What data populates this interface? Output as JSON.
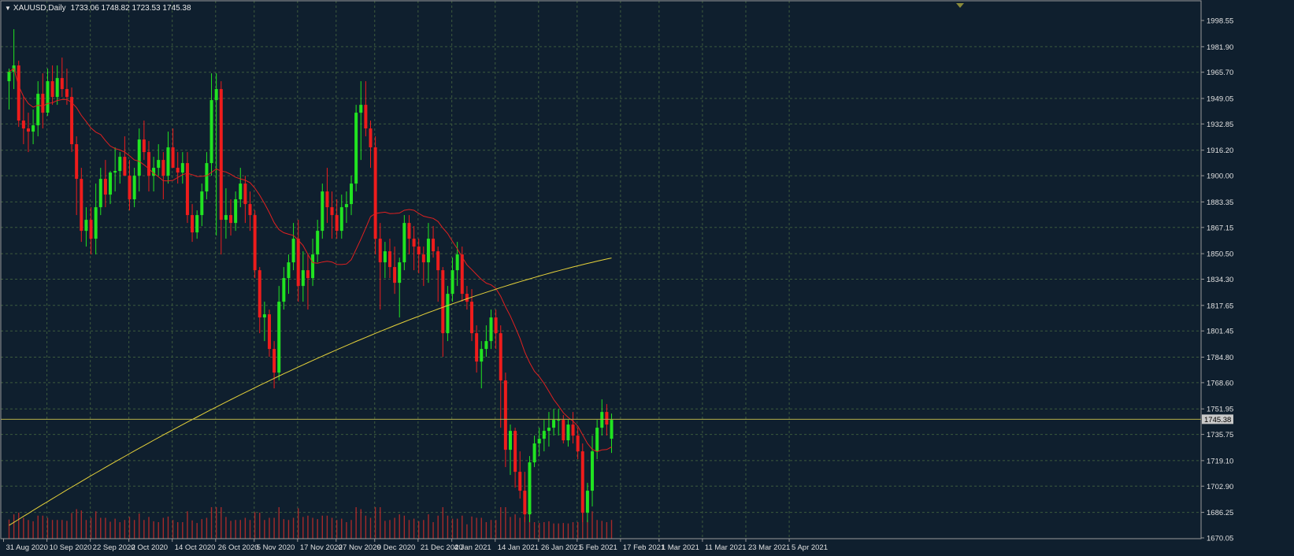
{
  "header": {
    "symbol": "XAUUSD,Daily",
    "ohlc": "1733.06 1748.82 1723.53 1745.38"
  },
  "current_price_label": "1745.38",
  "colors": {
    "background": "#0f1f2e",
    "grid": "#3d5a3d",
    "frame": "#9a9a9a",
    "text": "#e0e0e0",
    "bull": "#21e421",
    "bear": "#ee1c1c",
    "ma_fast": "#e02020",
    "ma_slow": "#e6d23a",
    "volume": "#a52a2a",
    "price_line": "#b8b04a",
    "price_label_bg": "#c9c9c9"
  },
  "chart_data": {
    "type": "candlestick",
    "title": "",
    "ylim": [
      1670.05,
      2004
    ],
    "y_ticks": [
      "1998.55",
      "1981.90",
      "1965.70",
      "1949.05",
      "1932.85",
      "1916.20",
      "1900.00",
      "1883.35",
      "1867.15",
      "1850.50",
      "1834.30",
      "1817.65",
      "1801.45",
      "1784.80",
      "1768.60",
      "1751.95",
      "1735.75",
      "1719.10",
      "1702.90",
      "1686.25",
      "1670.05"
    ],
    "x_tick_labels": [
      "31 Aug 2020",
      "10 Sep 2020",
      "22 Sep 2020",
      "2 Oct 2020",
      "14 Oct 2020",
      "26 Oct 2020",
      "5 Nov 2020",
      "17 Nov 2020",
      "27 Nov 2020",
      "9 Dec 2020",
      "21 Dec 2020",
      "4 Jan 2021",
      "14 Jan 2021",
      "26 Jan 2021",
      "5 Feb 2021",
      "17 Feb 2021",
      "1 Mar 2021",
      "11 Mar 2021",
      "23 Mar 2021",
      "5 Apr 2021"
    ],
    "x_tick_bar_index": [
      0,
      9,
      18,
      26,
      35,
      44,
      52,
      61,
      69,
      77,
      86,
      93,
      102,
      111,
      119,
      128,
      136,
      145,
      154,
      163
    ],
    "ohlc": [
      [
        1960,
        1968,
        1942,
        1966
      ],
      [
        1966,
        1993,
        1955,
        1970
      ],
      [
        1970,
        1973,
        1931,
        1935
      ],
      [
        1935,
        1950,
        1920,
        1930
      ],
      [
        1930,
        1940,
        1915,
        1928
      ],
      [
        1928,
        1942,
        1920,
        1932
      ],
      [
        1932,
        1960,
        1925,
        1952
      ],
      [
        1952,
        1965,
        1930,
        1940
      ],
      [
        1940,
        1968,
        1938,
        1960
      ],
      [
        1960,
        1970,
        1945,
        1950
      ],
      [
        1950,
        1970,
        1945,
        1962
      ],
      [
        1962,
        1975,
        1950,
        1955
      ],
      [
        1955,
        1968,
        1945,
        1950
      ],
      [
        1950,
        1956,
        1915,
        1920
      ],
      [
        1920,
        1925,
        1875,
        1898
      ],
      [
        1898,
        1905,
        1858,
        1865
      ],
      [
        1865,
        1880,
        1855,
        1872
      ],
      [
        1872,
        1880,
        1850,
        1860
      ],
      [
        1860,
        1895,
        1850,
        1880
      ],
      [
        1880,
        1905,
        1875,
        1898
      ],
      [
        1898,
        1910,
        1880,
        1888
      ],
      [
        1888,
        1903,
        1882,
        1902
      ],
      [
        1902,
        1918,
        1890,
        1903
      ],
      [
        1903,
        1915,
        1895,
        1912
      ],
      [
        1912,
        1925,
        1900,
        1900
      ],
      [
        1900,
        1910,
        1878,
        1885
      ],
      [
        1885,
        1905,
        1880,
        1900
      ],
      [
        1900,
        1930,
        1890,
        1923
      ],
      [
        1923,
        1935,
        1910,
        1915
      ],
      [
        1915,
        1922,
        1890,
        1900
      ],
      [
        1900,
        1912,
        1890,
        1905
      ],
      [
        1905,
        1920,
        1900,
        1910
      ],
      [
        1910,
        1915,
        1885,
        1900
      ],
      [
        1900,
        1928,
        1895,
        1918
      ],
      [
        1918,
        1930,
        1905,
        1905
      ],
      [
        1905,
        1915,
        1895,
        1902
      ],
      [
        1902,
        1915,
        1895,
        1908
      ],
      [
        1908,
        1915,
        1870,
        1875
      ],
      [
        1875,
        1882,
        1858,
        1864
      ],
      [
        1864,
        1878,
        1860,
        1875
      ],
      [
        1875,
        1895,
        1868,
        1890
      ],
      [
        1890,
        1915,
        1885,
        1908
      ],
      [
        1908,
        1965,
        1900,
        1948
      ],
      [
        1948,
        1965,
        1862,
        1955
      ],
      [
        1955,
        1960,
        1850,
        1872
      ],
      [
        1872,
        1892,
        1860,
        1875
      ],
      [
        1875,
        1885,
        1862,
        1870
      ],
      [
        1870,
        1890,
        1865,
        1885
      ],
      [
        1885,
        1905,
        1880,
        1895
      ],
      [
        1895,
        1900,
        1870,
        1882
      ],
      [
        1882,
        1890,
        1865,
        1875
      ],
      [
        1875,
        1878,
        1835,
        1840
      ],
      [
        1840,
        1842,
        1800,
        1810
      ],
      [
        1810,
        1820,
        1795,
        1812
      ],
      [
        1812,
        1815,
        1785,
        1790
      ],
      [
        1790,
        1795,
        1765,
        1775
      ],
      [
        1775,
        1830,
        1770,
        1820
      ],
      [
        1820,
        1842,
        1815,
        1835
      ],
      [
        1835,
        1850,
        1825,
        1845
      ],
      [
        1845,
        1870,
        1840,
        1860
      ],
      [
        1860,
        1872,
        1820,
        1830
      ],
      [
        1830,
        1852,
        1820,
        1840
      ],
      [
        1840,
        1850,
        1815,
        1835
      ],
      [
        1835,
        1860,
        1830,
        1850
      ],
      [
        1850,
        1872,
        1845,
        1865
      ],
      [
        1865,
        1895,
        1860,
        1890
      ],
      [
        1890,
        1905,
        1870,
        1880
      ],
      [
        1880,
        1890,
        1860,
        1875
      ],
      [
        1875,
        1885,
        1860,
        1865
      ],
      [
        1865,
        1888,
        1860,
        1880
      ],
      [
        1880,
        1890,
        1870,
        1882
      ],
      [
        1882,
        1900,
        1875,
        1895
      ],
      [
        1895,
        1945,
        1890,
        1940
      ],
      [
        1940,
        1960,
        1910,
        1945
      ],
      [
        1945,
        1960,
        1925,
        1930
      ],
      [
        1930,
        1935,
        1905,
        1918
      ],
      [
        1918,
        1925,
        1850,
        1860
      ],
      [
        1860,
        1870,
        1815,
        1845
      ],
      [
        1845,
        1858,
        1835,
        1852
      ],
      [
        1852,
        1860,
        1835,
        1842
      ],
      [
        1842,
        1855,
        1825,
        1832
      ],
      [
        1832,
        1848,
        1810,
        1845
      ],
      [
        1845,
        1875,
        1840,
        1870
      ],
      [
        1870,
        1875,
        1850,
        1860
      ],
      [
        1860,
        1868,
        1840,
        1855
      ],
      [
        1855,
        1860,
        1838,
        1850
      ],
      [
        1850,
        1855,
        1830,
        1845
      ],
      [
        1845,
        1870,
        1832,
        1860
      ],
      [
        1860,
        1868,
        1848,
        1852
      ],
      [
        1852,
        1855,
        1820,
        1840
      ],
      [
        1840,
        1842,
        1785,
        1800
      ],
      [
        1800,
        1830,
        1795,
        1825
      ],
      [
        1825,
        1848,
        1820,
        1840
      ],
      [
        1840,
        1858,
        1830,
        1850
      ],
      [
        1850,
        1855,
        1820,
        1825
      ],
      [
        1825,
        1830,
        1815,
        1820
      ],
      [
        1820,
        1828,
        1795,
        1800
      ],
      [
        1800,
        1805,
        1775,
        1782
      ],
      [
        1782,
        1795,
        1765,
        1790
      ],
      [
        1790,
        1805,
        1785,
        1795
      ],
      [
        1795,
        1815,
        1790,
        1810
      ],
      [
        1810,
        1815,
        1790,
        1800
      ],
      [
        1800,
        1805,
        1740,
        1770
      ],
      [
        1770,
        1775,
        1715,
        1726
      ],
      [
        1726,
        1742,
        1710,
        1738
      ],
      [
        1738,
        1740,
        1702,
        1712
      ],
      [
        1712,
        1725,
        1695,
        1700
      ],
      [
        1700,
        1712,
        1680,
        1685
      ],
      [
        1685,
        1722,
        1680,
        1718
      ],
      [
        1718,
        1735,
        1715,
        1730
      ],
      [
        1730,
        1740,
        1722,
        1733
      ],
      [
        1733,
        1745,
        1725,
        1738
      ],
      [
        1738,
        1750,
        1728,
        1740
      ],
      [
        1740,
        1752,
        1735,
        1745
      ],
      [
        1745,
        1752,
        1735,
        1745
      ],
      [
        1745,
        1748,
        1730,
        1732
      ],
      [
        1732,
        1745,
        1728,
        1742
      ],
      [
        1742,
        1750,
        1730,
        1735
      ],
      [
        1735,
        1740,
        1720,
        1725
      ],
      [
        1725,
        1730,
        1680,
        1686
      ],
      [
        1686,
        1705,
        1680,
        1700
      ],
      [
        1700,
        1735,
        1690,
        1725
      ],
      [
        1725,
        1745,
        1720,
        1740
      ],
      [
        1740,
        1758,
        1735,
        1750
      ],
      [
        1750,
        1755,
        1735,
        1742
      ],
      [
        1733,
        1749,
        1724,
        1745
      ]
    ]
  }
}
